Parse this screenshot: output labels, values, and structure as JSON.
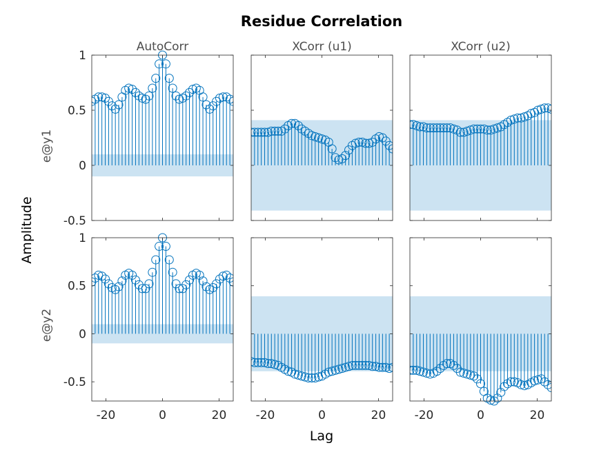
{
  "title": "Residue Correlation",
  "xlabel": "Lag",
  "ylabel": "Amplitude",
  "columns": [
    "AutoCorr",
    "XCorr (u1)",
    "XCorr (u2)"
  ],
  "rows": [
    "e@y1",
    "e@y2"
  ],
  "colors": {
    "stem": "#0072bd",
    "band": "#cce3f2",
    "box": "#262626"
  },
  "chart_data": {
    "type": "stem",
    "title": "Residue Correlation",
    "xlabel": "Lag",
    "ylabel": "Amplitude",
    "xlim": [
      -25,
      25
    ],
    "xticks": [
      -20,
      0,
      20
    ],
    "lags": [
      -25,
      25
    ],
    "panels": [
      {
        "row": "e@y1",
        "column": "AutoCorr",
        "ylim": [
          -0.5,
          1
        ],
        "yticks": [
          -0.5,
          0,
          0.5,
          1
        ],
        "band": [
          -0.1,
          0.1
        ],
        "values": [
          0.58,
          0.6,
          0.62,
          0.62,
          0.61,
          0.58,
          0.54,
          0.51,
          0.55,
          0.62,
          0.68,
          0.7,
          0.69,
          0.66,
          0.63,
          0.61,
          0.6,
          0.63,
          0.7,
          0.79,
          0.92,
          1.0,
          0.92,
          0.79,
          0.7,
          0.63,
          0.6,
          0.61,
          0.63,
          0.66,
          0.69,
          0.7,
          0.68,
          0.62,
          0.55,
          0.51,
          0.54,
          0.58,
          0.61,
          0.62,
          0.62,
          0.6,
          0.58
        ]
      },
      {
        "row": "e@y1",
        "column": "XCorr (u1)",
        "ylim": [
          -0.5,
          1
        ],
        "yticks": [
          -0.5,
          0,
          0.5,
          1
        ],
        "band": [
          -0.41,
          0.41
        ],
        "values": [
          0.3,
          0.3,
          0.3,
          0.3,
          0.3,
          0.3,
          0.31,
          0.31,
          0.31,
          0.31,
          0.33,
          0.36,
          0.38,
          0.38,
          0.36,
          0.33,
          0.31,
          0.29,
          0.27,
          0.26,
          0.25,
          0.24,
          0.23,
          0.21,
          0.15,
          0.07,
          0.05,
          0.06,
          0.09,
          0.14,
          0.18,
          0.2,
          0.21,
          0.21,
          0.2,
          0.2,
          0.21,
          0.24,
          0.26,
          0.25,
          0.22,
          0.18,
          0.15
        ]
      },
      {
        "row": "e@y1",
        "column": "XCorr (u2)",
        "ylim": [
          -0.5,
          1
        ],
        "yticks": [
          -0.5,
          0,
          0.5,
          1
        ],
        "band": [
          -0.41,
          0.41
        ],
        "values": [
          0.37,
          0.37,
          0.36,
          0.35,
          0.35,
          0.34,
          0.34,
          0.34,
          0.34,
          0.34,
          0.34,
          0.34,
          0.34,
          0.33,
          0.32,
          0.3,
          0.3,
          0.31,
          0.32,
          0.33,
          0.33,
          0.33,
          0.33,
          0.32,
          0.32,
          0.33,
          0.34,
          0.35,
          0.37,
          0.39,
          0.41,
          0.42,
          0.43,
          0.43,
          0.44,
          0.45,
          0.47,
          0.48,
          0.5,
          0.51,
          0.52,
          0.52,
          0.51
        ]
      },
      {
        "row": "e@y2",
        "column": "AutoCorr",
        "ylim": [
          -0.7,
          1
        ],
        "yticks": [
          -0.5,
          0,
          0.5,
          1
        ],
        "band": [
          -0.1,
          0.1
        ],
        "values": [
          0.54,
          0.58,
          0.61,
          0.6,
          0.57,
          0.52,
          0.48,
          0.46,
          0.49,
          0.55,
          0.61,
          0.63,
          0.61,
          0.56,
          0.51,
          0.47,
          0.47,
          0.52,
          0.64,
          0.77,
          0.91,
          1.0,
          0.91,
          0.77,
          0.64,
          0.52,
          0.47,
          0.47,
          0.51,
          0.56,
          0.61,
          0.63,
          0.61,
          0.55,
          0.49,
          0.46,
          0.48,
          0.52,
          0.57,
          0.6,
          0.61,
          0.58,
          0.54
        ]
      },
      {
        "row": "e@y2",
        "column": "XCorr (u1)",
        "ylim": [
          -0.7,
          1
        ],
        "yticks": [
          -0.5,
          0,
          0.5,
          1
        ],
        "band": [
          -0.39,
          0.39
        ],
        "values": [
          -0.29,
          -0.3,
          -0.3,
          -0.3,
          -0.3,
          -0.31,
          -0.31,
          -0.32,
          -0.33,
          -0.35,
          -0.37,
          -0.39,
          -0.4,
          -0.42,
          -0.43,
          -0.44,
          -0.45,
          -0.46,
          -0.46,
          -0.46,
          -0.45,
          -0.44,
          -0.42,
          -0.4,
          -0.39,
          -0.38,
          -0.37,
          -0.36,
          -0.35,
          -0.34,
          -0.33,
          -0.33,
          -0.33,
          -0.33,
          -0.33,
          -0.33,
          -0.34,
          -0.34,
          -0.35,
          -0.35,
          -0.35,
          -0.36,
          -0.35
        ]
      },
      {
        "row": "e@y2",
        "column": "XCorr (u2)",
        "ylim": [
          -0.7,
          1
        ],
        "yticks": [
          -0.5,
          0,
          0.5,
          1
        ],
        "band": [
          -0.39,
          0.39
        ],
        "values": [
          -0.38,
          -0.38,
          -0.38,
          -0.39,
          -0.4,
          -0.41,
          -0.42,
          -0.41,
          -0.39,
          -0.36,
          -0.33,
          -0.31,
          -0.31,
          -0.33,
          -0.36,
          -0.4,
          -0.41,
          -0.42,
          -0.43,
          -0.44,
          -0.47,
          -0.52,
          -0.6,
          -0.67,
          -0.69,
          -0.7,
          -0.67,
          -0.61,
          -0.55,
          -0.52,
          -0.5,
          -0.5,
          -0.51,
          -0.53,
          -0.54,
          -0.53,
          -0.51,
          -0.49,
          -0.48,
          -0.47,
          -0.5,
          -0.53,
          -0.56
        ]
      }
    ]
  }
}
